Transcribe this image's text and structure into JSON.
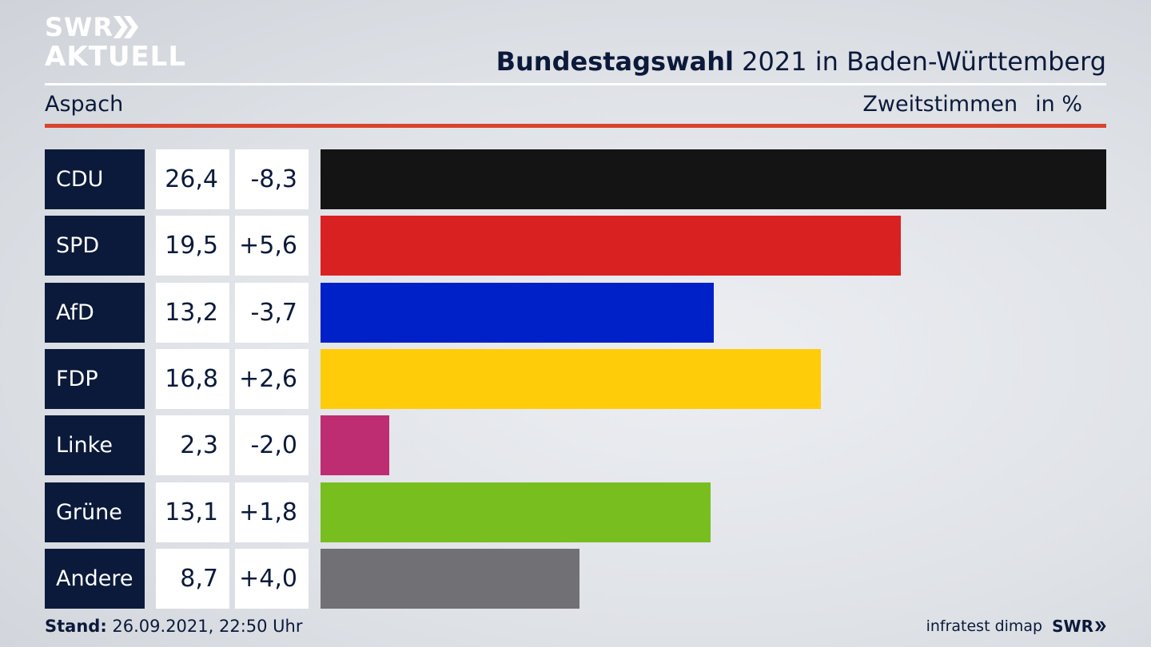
{
  "header": {
    "logo_line1": "SWR",
    "logo_line2": "AKTUELL",
    "title_bold": "Bundestagswahl",
    "title_rest": " 2021 in Baden-Württemberg",
    "region": "Aspach",
    "measure": "Zweitstimmen",
    "unit": "in %"
  },
  "chart_data": {
    "type": "bar",
    "orientation": "horizontal",
    "categories": [
      "CDU",
      "SPD",
      "AfD",
      "FDP",
      "Linke",
      "Grüne",
      "Andere"
    ],
    "values": [
      26.4,
      19.5,
      13.2,
      16.8,
      2.3,
      13.1,
      8.7
    ],
    "values_label": [
      "26,4",
      "19,5",
      "13,2",
      "16,8",
      "2,3",
      "13,1",
      "8,7"
    ],
    "changes": [
      -8.3,
      5.6,
      -3.7,
      2.6,
      -2.0,
      1.8,
      4.0
    ],
    "changes_label": [
      "-8,3",
      "+5,6",
      "-3,7",
      "+2,6",
      "-2,0",
      "+1,8",
      "+4,0"
    ],
    "colors": [
      "#141414",
      "#d92121",
      "#0021c8",
      "#ffcc0a",
      "#be2c72",
      "#78be1e",
      "#717175"
    ],
    "xlim": [
      0,
      26.4
    ]
  },
  "footer": {
    "stand_label": "Stand:",
    "stand_value": " 26.09.2021, 22:50 Uhr",
    "source": "infratest dimap",
    "brand": "SWR"
  }
}
